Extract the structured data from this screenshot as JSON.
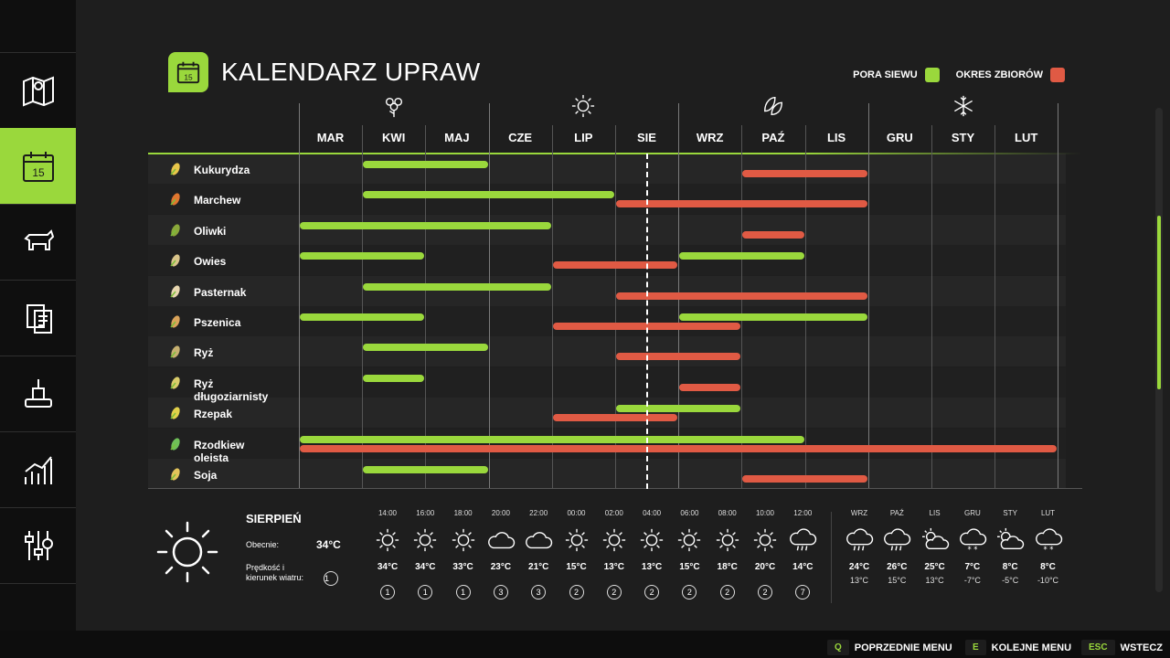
{
  "title": "KALENDARZ UPRAW",
  "legend": {
    "sow_label": "PORA SIEWU",
    "harvest_label": "OKRES ZBIORÓW",
    "sow_color": "#9ad83c",
    "harvest_color": "#e05a44"
  },
  "months": [
    "MAR",
    "KWI",
    "MAJ",
    "CZE",
    "LIP",
    "SIE",
    "WRZ",
    "PAŹ",
    "LIS",
    "GRU",
    "STY",
    "LUT"
  ],
  "season_icons": [
    "flower-icon",
    "sun-icon",
    "leaf-icon",
    "snowflake-icon"
  ],
  "crops": [
    {
      "name": "Kukurydza",
      "icon": "corn-icon",
      "sow": [
        [
          1,
          3
        ]
      ],
      "harvest": [
        [
          7,
          9
        ]
      ]
    },
    {
      "name": "Marchew",
      "icon": "carrot-icon",
      "sow": [
        [
          1,
          5
        ]
      ],
      "harvest": [
        [
          5,
          9
        ]
      ]
    },
    {
      "name": "Oliwki",
      "icon": "olive-icon",
      "sow": [
        [
          0,
          4
        ]
      ],
      "harvest": [
        [
          7,
          8
        ]
      ]
    },
    {
      "name": "Owies",
      "icon": "oat-icon",
      "sow": [
        [
          0,
          2
        ],
        [
          6,
          8
        ]
      ],
      "harvest": [
        [
          4,
          6
        ]
      ]
    },
    {
      "name": "Pasternak",
      "icon": "parsnip-icon",
      "sow": [
        [
          1,
          4
        ]
      ],
      "harvest": [
        [
          5,
          9
        ]
      ]
    },
    {
      "name": "Pszenica",
      "icon": "wheat-icon",
      "sow": [
        [
          0,
          2
        ],
        [
          6,
          9
        ]
      ],
      "harvest": [
        [
          4,
          7
        ]
      ]
    },
    {
      "name": "Ryż",
      "icon": "rice-icon",
      "sow": [
        [
          1,
          3
        ]
      ],
      "harvest": [
        [
          5,
          7
        ]
      ]
    },
    {
      "name": "Ryż długoziarnisty",
      "icon": "long-rice-icon",
      "sow": [
        [
          1,
          2
        ]
      ],
      "harvest": [
        [
          6,
          7
        ]
      ]
    },
    {
      "name": "Rzepak",
      "icon": "canola-icon",
      "sow": [
        [
          5,
          7
        ]
      ],
      "harvest": [
        [
          4,
          6
        ]
      ]
    },
    {
      "name": "Rzodkiew oleista",
      "icon": "radish-icon",
      "sow": [
        [
          0,
          8
        ]
      ],
      "harvest": [
        [
          0,
          12
        ]
      ]
    },
    {
      "name": "Soja",
      "icon": "soybean-icon",
      "sow": [
        [
          1,
          3
        ]
      ],
      "harvest": [
        [
          7,
          9
        ]
      ]
    }
  ],
  "current_month_position": 5.5,
  "weather": {
    "month": "SIERPIEŃ",
    "current_label": "Obecnie:",
    "current_temp": "34°C",
    "wind_label_1": "Prędkość i",
    "wind_label_2": "kierunek wiatru:",
    "current_wind": "1",
    "hourly": [
      {
        "time": "14:00",
        "icon": "sun-icon",
        "temp": "34°C",
        "wind": "1"
      },
      {
        "time": "16:00",
        "icon": "sun-icon",
        "temp": "34°C",
        "wind": "1"
      },
      {
        "time": "18:00",
        "icon": "sun-icon",
        "temp": "33°C",
        "wind": "1"
      },
      {
        "time": "20:00",
        "icon": "cloud-icon",
        "temp": "23°C",
        "wind": "3"
      },
      {
        "time": "22:00",
        "icon": "cloud-icon",
        "temp": "21°C",
        "wind": "3"
      },
      {
        "time": "00:00",
        "icon": "sun-icon",
        "temp": "15°C",
        "wind": "2"
      },
      {
        "time": "02:00",
        "icon": "sun-icon",
        "temp": "13°C",
        "wind": "2"
      },
      {
        "time": "04:00",
        "icon": "sun-icon",
        "temp": "13°C",
        "wind": "2"
      },
      {
        "time": "06:00",
        "icon": "sun-icon",
        "temp": "15°C",
        "wind": "2"
      },
      {
        "time": "08:00",
        "icon": "sun-icon",
        "temp": "18°C",
        "wind": "2"
      },
      {
        "time": "10:00",
        "icon": "sun-icon",
        "temp": "20°C",
        "wind": "2"
      },
      {
        "time": "12:00",
        "icon": "rain-cloud-icon",
        "temp": "14°C",
        "wind": "7"
      }
    ],
    "monthly": [
      {
        "month": "WRZ",
        "icon": "rain-cloud-icon",
        "high": "24°C",
        "low": "13°C"
      },
      {
        "month": "PAŹ",
        "icon": "rain-cloud-icon",
        "high": "26°C",
        "low": "15°C"
      },
      {
        "month": "LIS",
        "icon": "partly-cloudy-icon",
        "high": "25°C",
        "low": "13°C"
      },
      {
        "month": "GRU",
        "icon": "snow-cloud-icon",
        "high": "7°C",
        "low": "-7°C"
      },
      {
        "month": "STY",
        "icon": "partly-cloudy-icon",
        "high": "8°C",
        "low": "-5°C"
      },
      {
        "month": "LUT",
        "icon": "snow-cloud-icon",
        "high": "8°C",
        "low": "-10°C"
      }
    ]
  },
  "footer": {
    "prev_key": "Q",
    "prev_label": "POPRZEDNIE MENU",
    "next_key": "E",
    "next_label": "KOLEJNE MENU",
    "back_key": "ESC",
    "back_label": "WSTECZ"
  }
}
